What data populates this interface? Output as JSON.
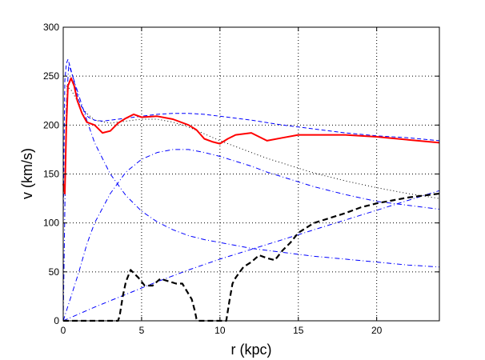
{
  "chart_data": {
    "type": "line",
    "title": "",
    "xlabel": "r (kpc)",
    "ylabel": "v (km/s)",
    "xlim": [
      0,
      24
    ],
    "ylim": [
      0,
      300
    ],
    "xticks": [
      0,
      5,
      10,
      15,
      20
    ],
    "yticks": [
      0,
      50,
      100,
      150,
      200,
      250,
      300
    ],
    "grid": "dotted",
    "legend": "none",
    "series": [
      {
        "style": "solid",
        "color": "#ff0000",
        "x": [
          0,
          0.1,
          0.2,
          0.3,
          0.5,
          0.7,
          0.9,
          1.2,
          1.5,
          2.0,
          2.5,
          3.0,
          3.5,
          4.0,
          4.5,
          5.0,
          6.0,
          7.0,
          8.0,
          8.5,
          9.0,
          9.5,
          10.0,
          10.5,
          11.0,
          12.0,
          13.0,
          14.0,
          15.0,
          16.0,
          18.0,
          20.0,
          22.0,
          24.0
        ],
        "y": [
          140,
          130,
          200,
          240,
          248,
          240,
          225,
          212,
          203,
          200,
          192,
          194,
          202,
          207,
          211,
          208,
          209,
          206,
          200,
          195,
          186,
          183,
          181,
          186,
          190,
          192,
          184,
          187,
          190,
          190,
          190,
          188,
          185,
          182
        ]
      },
      {
        "style": "dashed",
        "color": "#000000",
        "x": [
          0,
          3.0,
          3.5,
          3.6,
          3.8,
          4.0,
          4.3,
          4.8,
          5.2,
          5.7,
          6.2,
          6.8,
          7.2,
          7.6,
          7.9,
          8.2,
          8.4,
          8.5,
          8.6,
          10.4,
          10.6,
          10.8,
          11.0,
          11.5,
          12.0,
          12.5,
          13.0,
          13.5,
          14.0,
          14.5,
          15.0,
          16.0,
          17.0,
          18.0,
          19.0,
          20.0,
          21.0,
          22.0,
          23.0,
          24.0
        ],
        "y": [
          0,
          0,
          0,
          5,
          25,
          40,
          52,
          44,
          36,
          36,
          43,
          40,
          38,
          38,
          30,
          22,
          10,
          2,
          0,
          0,
          20,
          38,
          44,
          55,
          60,
          67,
          64,
          62,
          72,
          80,
          90,
          100,
          105,
          110,
          116,
          120,
          123,
          126,
          128,
          130
        ]
      },
      {
        "style": "dashdot",
        "color": "#0000ff",
        "x": [
          0,
          0.3,
          0.6,
          1.0,
          1.5,
          2.0,
          3.0,
          4.0,
          5.0,
          6.0,
          7.0,
          8.0,
          9.0,
          10.0,
          11.0,
          12.0,
          13.0,
          14.0,
          15.0,
          16.0,
          18.0,
          20.0,
          22.0,
          24.0
        ],
        "y": [
          0,
          15,
          30,
          50,
          78,
          100,
          130,
          152,
          165,
          172,
          175,
          175,
          172,
          168,
          163,
          158,
          152,
          147,
          142,
          137,
          129,
          122,
          118,
          114
        ]
      },
      {
        "style": "dashdot",
        "color": "#0000ff",
        "x": [
          0,
          0.2,
          0.35,
          0.5,
          0.8,
          1.0,
          1.5,
          2.0,
          3.0,
          4.0,
          5.0,
          6.0,
          7.0,
          8.0,
          9.0,
          10.0,
          11.0,
          12.0,
          14.0,
          16.0,
          18.0,
          20.0,
          22.0,
          24.0
        ],
        "y": [
          0,
          220,
          262,
          255,
          240,
          230,
          205,
          182,
          150,
          128,
          112,
          101,
          93,
          87,
          83,
          80,
          77,
          74,
          70,
          66,
          63,
          60,
          57,
          55
        ]
      },
      {
        "style": "dashdot",
        "color": "#0000ff",
        "x": [
          0,
          2,
          4,
          6,
          8,
          10,
          12,
          14,
          16,
          18,
          20,
          22,
          24
        ],
        "y": [
          0,
          14,
          27,
          40,
          52,
          63,
          73,
          83,
          93,
          103,
          113,
          123,
          133
        ]
      },
      {
        "style": "dashed",
        "color": "#0000ff",
        "x": [
          0,
          0.1,
          0.2,
          0.3,
          0.4,
          0.6,
          0.8,
          1.0,
          1.3,
          1.6,
          2.0,
          2.5,
          3.0,
          3.5,
          4.0,
          5.0,
          6.0,
          7.0,
          8.0,
          9.0,
          10.0,
          12.0,
          14.0,
          16.0,
          18.0,
          20.0,
          22.0,
          24.0
        ],
        "y": [
          100,
          245,
          263,
          267,
          262,
          250,
          237,
          225,
          215,
          208,
          205,
          204,
          205,
          206,
          207,
          209,
          211,
          212,
          212,
          211,
          209,
          205,
          200,
          196,
          192,
          189,
          187,
          184
        ]
      },
      {
        "style": "dotted",
        "color": "#000000",
        "x": [
          0.2,
          0.5,
          1.0,
          1.5,
          2.0,
          3.0,
          4.0,
          5.0,
          6.0,
          7.0,
          8.0,
          9.0,
          10.0,
          11.0,
          12.0,
          13.0,
          14.0,
          15.0,
          16.0,
          18.0,
          20.0,
          22.0,
          24.0
        ],
        "y": [
          240,
          236,
          222,
          212,
          205,
          202,
          204,
          206,
          206,
          203,
          198,
          191,
          184,
          178,
          172,
          166,
          161,
          156,
          151,
          143,
          136,
          130,
          125
        ]
      }
    ]
  },
  "colors": {
    "observed": "#ff0000",
    "gas": "#000000",
    "components": "#0000ff"
  }
}
